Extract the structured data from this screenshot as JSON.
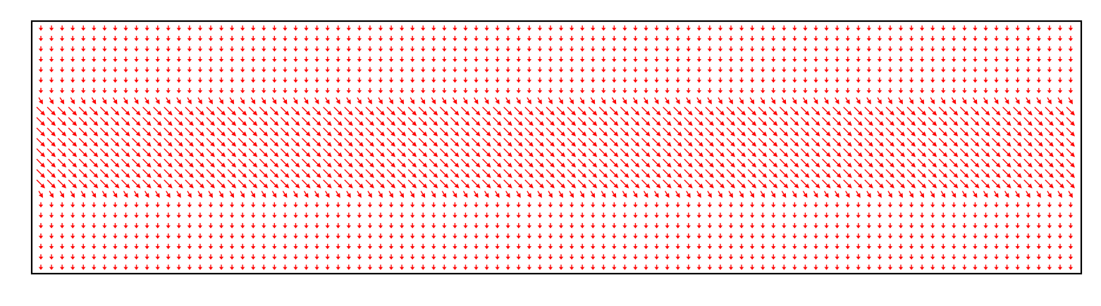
{
  "chart_data": {
    "type": "quiver",
    "title": "",
    "xlabel": "",
    "ylabel": "",
    "grid": false,
    "axes_ticks_visible": false,
    "arrow_color": "#ff0000",
    "frame_color": "#000000",
    "background": "#ffffff",
    "columns": 98,
    "rows": 24,
    "xlim": [
      0,
      98
    ],
    "ylim": [
      0,
      24
    ],
    "field": {
      "description_type": "uniform-downward-with-band",
      "background_vector": [
        0.0,
        -1.0
      ],
      "band_vector": [
        1.6,
        -1.6
      ],
      "band_rows": [
        8,
        15
      ],
      "transition_rows": [
        7,
        16
      ]
    }
  }
}
